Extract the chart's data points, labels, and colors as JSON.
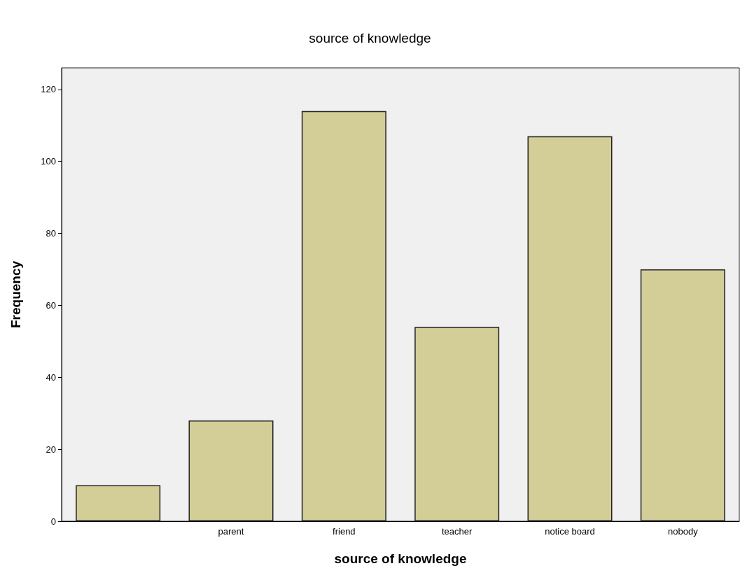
{
  "chart_data": {
    "type": "bar",
    "title": "source of knowledge",
    "xlabel": "source of knowledge",
    "ylabel": "Frequency",
    "categories": [
      null,
      "parent",
      "friend",
      "teacher",
      "notice board",
      "nobody"
    ],
    "values": [
      10,
      28,
      114,
      54,
      107,
      70
    ],
    "color": "#d3ce97",
    "ylim": [
      0,
      126
    ],
    "yticks": [
      0,
      20,
      40,
      60,
      80,
      100,
      120
    ],
    "grid": false
  }
}
